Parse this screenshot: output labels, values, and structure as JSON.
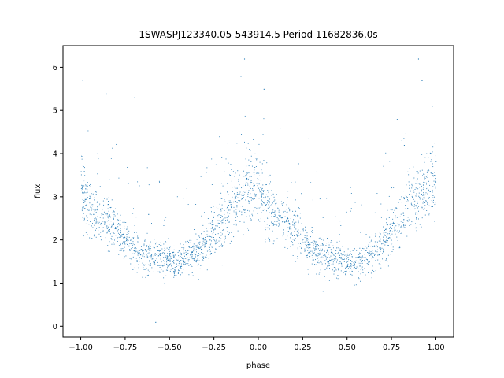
{
  "chart_data": {
    "type": "scatter",
    "title": "1SWASPJ123340.05-543914.5 Period 11682836.0s",
    "xlabel": "phase",
    "ylabel": "flux",
    "xlim": [
      -1.1,
      1.1
    ],
    "ylim": [
      -0.25,
      6.5
    ],
    "x_ticks": [
      -1.0,
      -0.75,
      -0.5,
      -0.25,
      0.0,
      0.25,
      0.5,
      0.75,
      1.0
    ],
    "x_tick_labels": [
      "−1.00",
      "−0.75",
      "−0.50",
      "−0.25",
      "0.00",
      "0.25",
      "0.50",
      "0.75",
      "1.00"
    ],
    "y_ticks": [
      0,
      1,
      2,
      3,
      4,
      5,
      6
    ],
    "y_tick_labels": [
      "0",
      "1",
      "2",
      "3",
      "4",
      "5",
      "6"
    ],
    "grid": false,
    "marker_color": "#1f77b4",
    "profile": {
      "phase": [
        0.0,
        0.02,
        0.05,
        0.1,
        0.15,
        0.2,
        0.25,
        0.3,
        0.35,
        0.4,
        0.45,
        0.5,
        0.55,
        0.6,
        0.65,
        0.7,
        0.75,
        0.8,
        0.85,
        0.9,
        0.95,
        1.0
      ],
      "flux": [
        3.3,
        3.0,
        2.8,
        2.5,
        2.4,
        2.2,
        2.0,
        1.8,
        1.7,
        1.6,
        1.6,
        1.5,
        1.45,
        1.6,
        1.7,
        1.9,
        2.2,
        2.5,
        2.8,
        3.0,
        3.2,
        3.3
      ]
    },
    "series": [
      {
        "x": [
          -0.99,
          -0.98,
          -0.93,
          -0.86,
          -0.83,
          -0.7,
          -0.62,
          -0.58,
          -0.45,
          -0.34,
          -0.28,
          -0.22,
          -0.15,
          -0.1,
          -0.08,
          0.02,
          0.03,
          0.12,
          0.2,
          0.3,
          0.4,
          0.5,
          0.6,
          0.66,
          0.72,
          0.78,
          0.82,
          0.87,
          0.9,
          0.92,
          0.96
        ],
        "y": [
          5.7,
          3.5,
          2.6,
          5.4,
          3.9,
          5.3,
          2.6,
          0.1,
          1.3,
          1.1,
          2.2,
          4.4,
          3.0,
          5.8,
          6.2,
          3.2,
          5.5,
          4.6,
          2.4,
          2.3,
          1.6,
          1.4,
          1.2,
          1.3,
          2.0,
          4.8,
          4.2,
          3.7,
          6.2,
          5.7,
          2.8
        ]
      }
    ]
  }
}
